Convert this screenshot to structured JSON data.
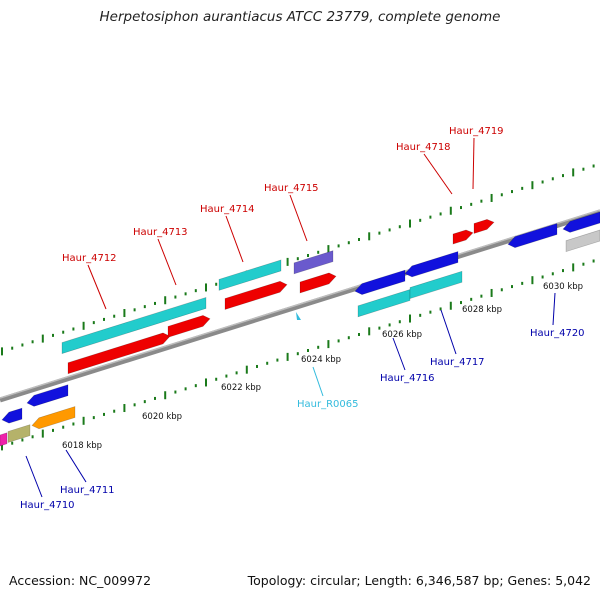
{
  "title": "Herpetosiphon aurantiacus ATCC 23779, complete genome",
  "footer": {
    "accession": "Accession: NC_009972",
    "topology": "Topology: circular; Length: 6,346,587 bp; Genes: 5,042"
  },
  "colors": {
    "backbone": "#8a8a8a",
    "tick": "#1a7a1a",
    "label_upper": "#cc0000",
    "label_lower": "#0000aa",
    "label_rna": "#33bbdd",
    "gene_red": "#ee0000",
    "gene_cyan": "#22cccc",
    "gene_blue": "#1111dd",
    "gene_purple": "#6a5acd",
    "gene_orange": "#ff9900",
    "gene_khaki": "#b5b26a",
    "gene_magenta": "#ee22aa",
    "gene_gray": "#c8c8c8"
  },
  "scale_labels": [
    "6018 kbp",
    "6020 kbp",
    "6022 kbp",
    "6024 kbp",
    "6026 kbp",
    "6028 kbp",
    "6030 kbp"
  ],
  "gene_labels_upper": [
    "Haur_4712",
    "Haur_4713",
    "Haur_4714",
    "Haur_4715",
    "Haur_4718",
    "Haur_4719"
  ],
  "gene_labels_lower": [
    "Haur_4710",
    "Haur_4711",
    "Haur_4716",
    "Haur_4717",
    "Haur_4720"
  ],
  "rna_labels": [
    "Haur_R0065"
  ]
}
